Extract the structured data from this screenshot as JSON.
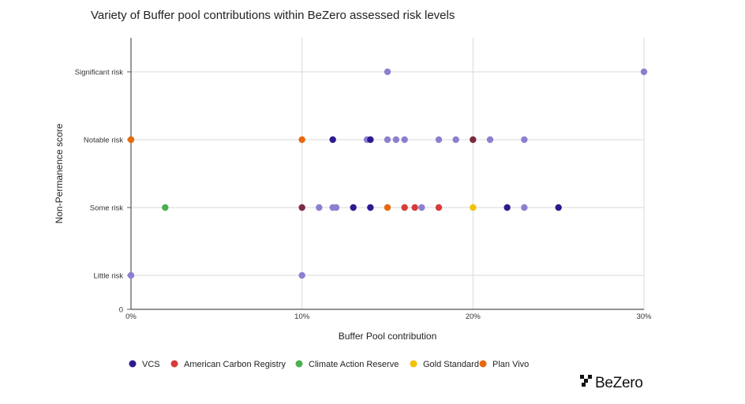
{
  "chart_data": {
    "type": "scatter",
    "title": "Variety of Buffer pool contributions within BeZero assessed risk levels",
    "xlabel": "Buffer Pool contribution",
    "ylabel": "Non-Permanence score",
    "xlim": [
      0,
      30
    ],
    "x_tick_labels": [
      "0%",
      "10%",
      "20%",
      "30%"
    ],
    "y_tick_labels": [
      "0",
      "Little risk",
      "Some risk",
      "Notable risk",
      "Significant risk"
    ],
    "grid": true,
    "legend_position": "bottom",
    "point_color_default": "#8b80cf",
    "series": [
      {
        "name": "VCS",
        "color": "#2e1a8f",
        "points": [
          {
            "x": 11.8,
            "y": "Notable risk"
          },
          {
            "x": 14.0,
            "y": "Notable risk"
          },
          {
            "x": 13.0,
            "y": "Some risk"
          },
          {
            "x": 14.0,
            "y": "Some risk"
          },
          {
            "x": 22.0,
            "y": "Some risk"
          },
          {
            "x": 25.0,
            "y": "Some risk"
          }
        ]
      },
      {
        "name": "American Carbon Registry",
        "color": "#d83b3b",
        "points": [
          {
            "x": 16.0,
            "y": "Some risk"
          },
          {
            "x": 16.6,
            "y": "Some risk"
          },
          {
            "x": 18.0,
            "y": "Some risk"
          }
        ]
      },
      {
        "name": "Climate Action Reserve",
        "color": "#4caf50",
        "points": [
          {
            "x": 2.0,
            "y": "Some risk"
          }
        ]
      },
      {
        "name": "Gold Standard",
        "color": "#f2c200",
        "points": [
          {
            "x": 20.0,
            "y": "Some risk"
          }
        ]
      },
      {
        "name": "Plan Vivo",
        "color": "#e8680c",
        "points": [
          {
            "x": 0.0,
            "y": "Notable risk"
          },
          {
            "x": 10.0,
            "y": "Notable risk"
          },
          {
            "x": 15.0,
            "y": "Some risk"
          }
        ]
      }
    ],
    "unlabeled_points": [
      {
        "x": 15.0,
        "y": "Significant risk",
        "color": "#8b80cf"
      },
      {
        "x": 30.0,
        "y": "Significant risk",
        "color": "#8b80cf"
      },
      {
        "x": 13.8,
        "y": "Notable risk",
        "color": "#8b80cf"
      },
      {
        "x": 15.0,
        "y": "Notable risk",
        "color": "#8b80cf"
      },
      {
        "x": 15.5,
        "y": "Notable risk",
        "color": "#8b80cf"
      },
      {
        "x": 16.0,
        "y": "Notable risk",
        "color": "#8b80cf"
      },
      {
        "x": 18.0,
        "y": "Notable risk",
        "color": "#8b80cf"
      },
      {
        "x": 19.0,
        "y": "Notable risk",
        "color": "#8b80cf"
      },
      {
        "x": 20.0,
        "y": "Notable risk",
        "color": "#7a2a3a"
      },
      {
        "x": 21.0,
        "y": "Notable risk",
        "color": "#8b80cf"
      },
      {
        "x": 23.0,
        "y": "Notable risk",
        "color": "#8b80cf"
      },
      {
        "x": 10.0,
        "y": "Some risk",
        "color": "#7a2a4a"
      },
      {
        "x": 11.0,
        "y": "Some risk",
        "color": "#8b80cf"
      },
      {
        "x": 11.8,
        "y": "Some risk",
        "color": "#8b80cf"
      },
      {
        "x": 12.0,
        "y": "Some risk",
        "color": "#8b80cf"
      },
      {
        "x": 17.0,
        "y": "Some risk",
        "color": "#8b80cf"
      },
      {
        "x": 23.0,
        "y": "Some risk",
        "color": "#8b80cf"
      },
      {
        "x": 0.0,
        "y": "Little risk",
        "color": "#8b80cf"
      },
      {
        "x": 10.0,
        "y": "Little risk",
        "color": "#8b80cf"
      }
    ]
  },
  "brand": {
    "name": "BeZero"
  }
}
